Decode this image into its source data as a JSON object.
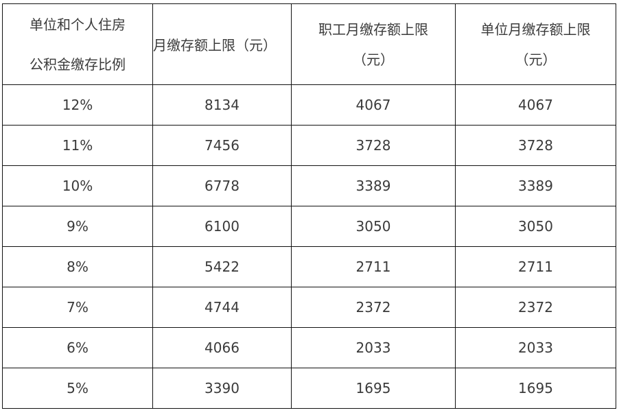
{
  "table": {
    "headers": [
      [
        "单位和个人住房",
        "公积金缴存比例"
      ],
      [
        "月缴存额上限（元）"
      ],
      [
        "职工月缴存额上限",
        "（元）"
      ],
      [
        "单位月缴存额上限",
        "（元）"
      ]
    ],
    "rows": [
      [
        "12%",
        "8134",
        "4067",
        "4067"
      ],
      [
        "11%",
        "7456",
        "3728",
        "3728"
      ],
      [
        "10%",
        "6778",
        "3389",
        "3389"
      ],
      [
        "9%",
        "6100",
        "3050",
        "3050"
      ],
      [
        "8%",
        "5422",
        "2711",
        "2711"
      ],
      [
        "7%",
        "4744",
        "2372",
        "2372"
      ],
      [
        "6%",
        "4066",
        "2033",
        "2033"
      ],
      [
        "5%",
        "3390",
        "1695",
        "1695"
      ]
    ]
  }
}
